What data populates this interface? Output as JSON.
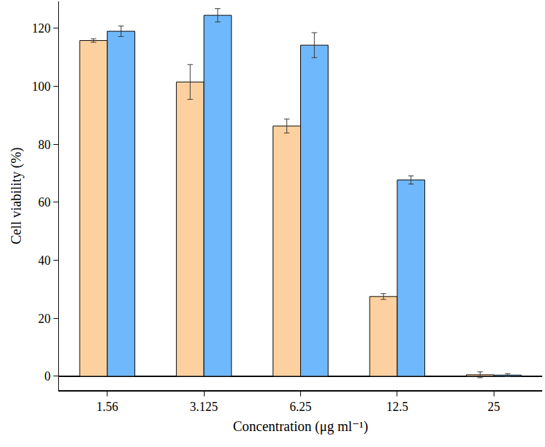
{
  "chart_data": {
    "type": "bar",
    "x_label": "Concentration (μg ml⁻¹)",
    "y_label": "Cell viability (%)",
    "categories": [
      "1.56",
      "3.125",
      "6.25",
      "12.5",
      "25"
    ],
    "series": [
      {
        "color": "#fdd19f",
        "values": [
          115.8,
          101.5,
          86.3,
          27.5,
          0.5
        ],
        "errors": [
          0.6,
          6.0,
          2.4,
          1.0,
          1.0
        ]
      },
      {
        "color": "#6fb8fc",
        "values": [
          119.0,
          124.5,
          114.2,
          67.7,
          0.4
        ],
        "errors": [
          1.8,
          2.3,
          4.3,
          1.4,
          0.5
        ]
      }
    ],
    "ylim": [
      -4.8,
      129.3
    ],
    "yticks": [
      0,
      20,
      40,
      60,
      80,
      100,
      120
    ],
    "grid": false
  }
}
